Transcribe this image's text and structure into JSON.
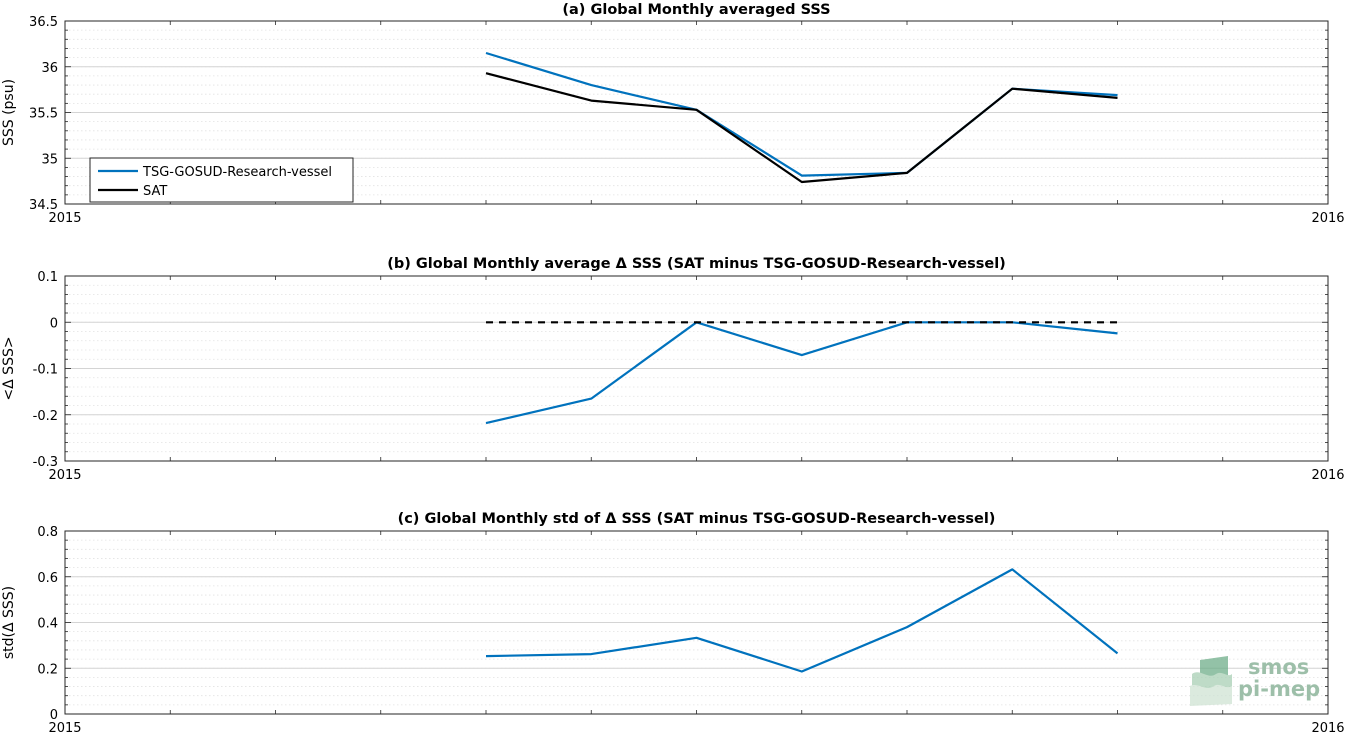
{
  "chart_data": [
    {
      "type": "line",
      "title": "(a) Global Monthly averaged SSS",
      "ylabel": "SSS (psu)",
      "xlim": [
        "2015",
        "2016"
      ],
      "ylim": [
        34.5,
        36.5
      ],
      "yticks": [
        "34.5",
        "35",
        "35.5",
        "36",
        "36.5"
      ],
      "xticklabels": [
        "2015",
        "2016"
      ],
      "grid": true,
      "legend": "bottom-left",
      "x_months": [
        4,
        5,
        6,
        7,
        8,
        9,
        10
      ],
      "series": [
        {
          "name": "TSG-GOSUD-Research-vessel",
          "color": "#0072bd",
          "dashed": false,
          "values": [
            36.15,
            35.8,
            35.53,
            34.81,
            34.84,
            35.76,
            35.69
          ]
        },
        {
          "name": "SAT",
          "color": "#000000",
          "dashed": false,
          "values": [
            35.93,
            35.63,
            35.53,
            34.74,
            34.84,
            35.76,
            35.66
          ]
        }
      ]
    },
    {
      "type": "line",
      "title": "(b) Global Monthly average Δ SSS (SAT minus TSG-GOSUD-Research-vessel)",
      "ylabel": "<Δ SSS>",
      "xlim": [
        "2015",
        "2016"
      ],
      "ylim": [
        -0.3,
        0.1
      ],
      "yticks": [
        "-0.3",
        "-0.2",
        "-0.1",
        "0",
        "0.1"
      ],
      "xticklabels": [
        "2015",
        "2016"
      ],
      "grid": true,
      "x_months": [
        4,
        5,
        6,
        7,
        8,
        9,
        10
      ],
      "series": [
        {
          "color": "#0072bd",
          "dashed": false,
          "values": [
            -0.218,
            -0.165,
            0.0,
            -0.071,
            0.0,
            0.0,
            -0.024
          ]
        },
        {
          "color": "#000000",
          "dashed": true,
          "values": [
            0,
            0,
            0,
            0,
            0,
            0,
            0
          ]
        }
      ]
    },
    {
      "type": "line",
      "title": "(c) Global Monthly std of Δ SSS (SAT minus TSG-GOSUD-Research-vessel)",
      "ylabel": "std(Δ SSS)",
      "xlim": [
        "2015",
        "2016"
      ],
      "ylim": [
        0,
        0.8
      ],
      "yticks": [
        "0",
        "0.2",
        "0.4",
        "0.6",
        "0.8"
      ],
      "xticklabels": [
        "2015",
        "2016"
      ],
      "grid": true,
      "x_months": [
        4,
        5,
        6,
        7,
        8,
        9,
        10
      ],
      "series": [
        {
          "color": "#0072bd",
          "dashed": false,
          "values": [
            0.253,
            0.262,
            0.333,
            0.186,
            0.38,
            0.632,
            0.265
          ]
        }
      ]
    }
  ],
  "logo": {
    "line1": "smos",
    "line2": "pi-mep"
  }
}
